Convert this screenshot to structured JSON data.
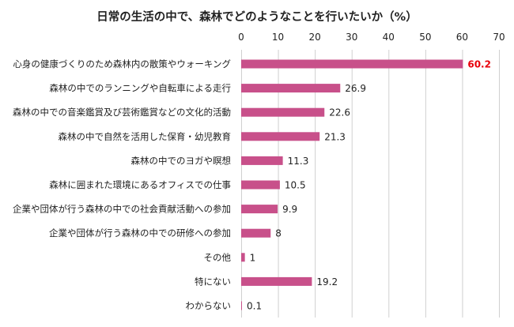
{
  "chart_data": {
    "type": "bar",
    "orientation": "horizontal",
    "title": "日常の生活の中で、森林でどのようなことを行いたいか（%）",
    "xlim": [
      0,
      70
    ],
    "xticks": [
      0,
      10,
      20,
      30,
      40,
      50,
      60,
      70
    ],
    "grid": true,
    "bar_color": "#c8508a",
    "highlight_color": "#e8000b",
    "highlight_index": 0,
    "categories": [
      "心身の健康づくりのため森林内の散策やウォーキング",
      "森林の中でのランニングや自転車による走行",
      "森林の中での音楽鑑賞及び芸術鑑賞などの文化的活動",
      "森林の中で自然を活用した保育・幼児教育",
      "森林の中でのヨガや瞑想",
      "森林に囲まれた環境にあるオフィスでの仕事",
      "企業や団体が行う森林の中での社会貢献活動への参加",
      "企業や団体が行う森林の中での研修への参加",
      "その他",
      "特にない",
      "わからない"
    ],
    "values": [
      60.2,
      26.9,
      22.6,
      21.3,
      11.3,
      10.5,
      9.9,
      8,
      1,
      19.2,
      0.1
    ],
    "value_labels": [
      "60.2",
      "26.9",
      "22.6",
      "21.3",
      "11.3",
      "10.5",
      "9.9",
      "8",
      "1",
      "19.2",
      "0.1"
    ]
  }
}
